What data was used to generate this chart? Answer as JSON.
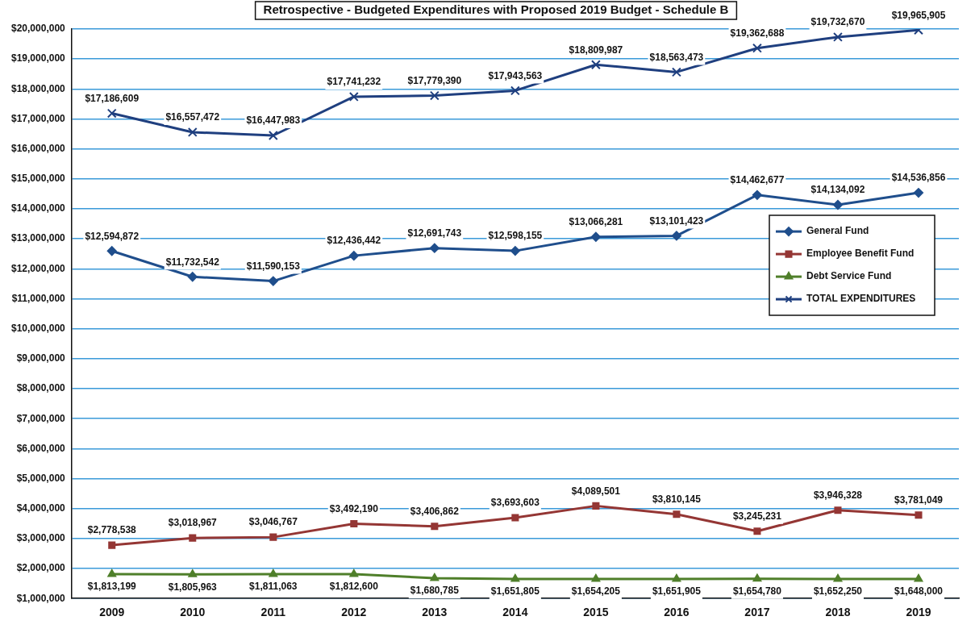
{
  "chart_data": {
    "type": "line",
    "title": "Retrospective - Budgeted Expenditures with Proposed 2019 Budget - Schedule B",
    "categories": [
      "2009",
      "2010",
      "2011",
      "2012",
      "2013",
      "2014",
      "2015",
      "2016",
      "2017",
      "2018",
      "2019"
    ],
    "series": [
      {
        "name": "General Fund",
        "color": "#1f4e8c",
        "marker": "diamond",
        "values": [
          12594872,
          11732542,
          11590153,
          12436442,
          12691743,
          12598155,
          13066281,
          13101423,
          14462677,
          14134092,
          14536856
        ],
        "value_labels": [
          "$12,594,872",
          "$11,732,542",
          "$11,590,153",
          "$12,436,442",
          "$12,691,743",
          "$12,598,155",
          "$13,066,281",
          "$13,101,423",
          "$14,462,677",
          "$14,134,092",
          "$14,536,856"
        ]
      },
      {
        "name": "Employee Benefit Fund",
        "color": "#943634",
        "marker": "square",
        "values": [
          2778538,
          3018967,
          3046767,
          3492190,
          3406862,
          3693603,
          4089501,
          3810145,
          3245231,
          3946328,
          3781049
        ],
        "value_labels": [
          "$2,778,538",
          "$3,018,967",
          "$3,046,767",
          "$3,492,190",
          "$3,406,862",
          "$3,693,603",
          "$4,089,501",
          "$3,810,145",
          "$3,245,231",
          "$3,946,328",
          "$3,781,049"
        ]
      },
      {
        "name": "Debt Service Fund",
        "color": "#4f7f2a",
        "marker": "triangle",
        "values": [
          1813199,
          1805963,
          1811063,
          1812600,
          1680785,
          1651805,
          1654205,
          1651905,
          1654780,
          1652250,
          1648000
        ],
        "value_labels": [
          "$1,813,199",
          "$1,805,963",
          "$1,811,063",
          "$1,812,600",
          "$1,680,785",
          "$1,651,805",
          "$1,654,205",
          "$1,651,905",
          "$1,654,780",
          "$1,652,250",
          "$1,648,000"
        ]
      },
      {
        "name": "TOTAL EXPENDITURES",
        "color": "#1f3f7f",
        "marker": "cross",
        "values": [
          17186609,
          16557472,
          16447983,
          17741232,
          17779390,
          17943563,
          18809987,
          18563473,
          19362688,
          19732670,
          19965905
        ],
        "value_labels": [
          "$17,186,609",
          "$16,557,472",
          "$16,447,983",
          "$17,741,232",
          "$17,779,390",
          "$17,943,563",
          "$18,809,987",
          "$18,563,473",
          "$19,362,688",
          "$19,732,670",
          "$19,965,905"
        ]
      }
    ],
    "ylim": [
      1000000,
      20000000
    ],
    "yticks": [
      {
        "value": 1000000,
        "label": "$1,000,000"
      },
      {
        "value": 2000000,
        "label": "$2,000,000"
      },
      {
        "value": 3000000,
        "label": "$3,000,000"
      },
      {
        "value": 4000000,
        "label": "$4,000,000"
      },
      {
        "value": 5000000,
        "label": "$5,000,000"
      },
      {
        "value": 6000000,
        "label": "$6,000,000"
      },
      {
        "value": 7000000,
        "label": "$7,000,000"
      },
      {
        "value": 8000000,
        "label": "$8,000,000"
      },
      {
        "value": 9000000,
        "label": "$9,000,000"
      },
      {
        "value": 10000000,
        "label": "$10,000,000"
      },
      {
        "value": 11000000,
        "label": "$11,000,000"
      },
      {
        "value": 12000000,
        "label": "$12,000,000"
      },
      {
        "value": 13000000,
        "label": "$13,000,000"
      },
      {
        "value": 14000000,
        "label": "$14,000,000"
      },
      {
        "value": 15000000,
        "label": "$15,000,000"
      },
      {
        "value": 16000000,
        "label": "$16,000,000"
      },
      {
        "value": 17000000,
        "label": "$17,000,000"
      },
      {
        "value": 18000000,
        "label": "$18,000,000"
      },
      {
        "value": 19000000,
        "label": "$19,000,000"
      },
      {
        "value": 20000000,
        "label": "$20,000,000"
      }
    ],
    "grid": "y",
    "legend": "right",
    "line_style": "solid"
  }
}
